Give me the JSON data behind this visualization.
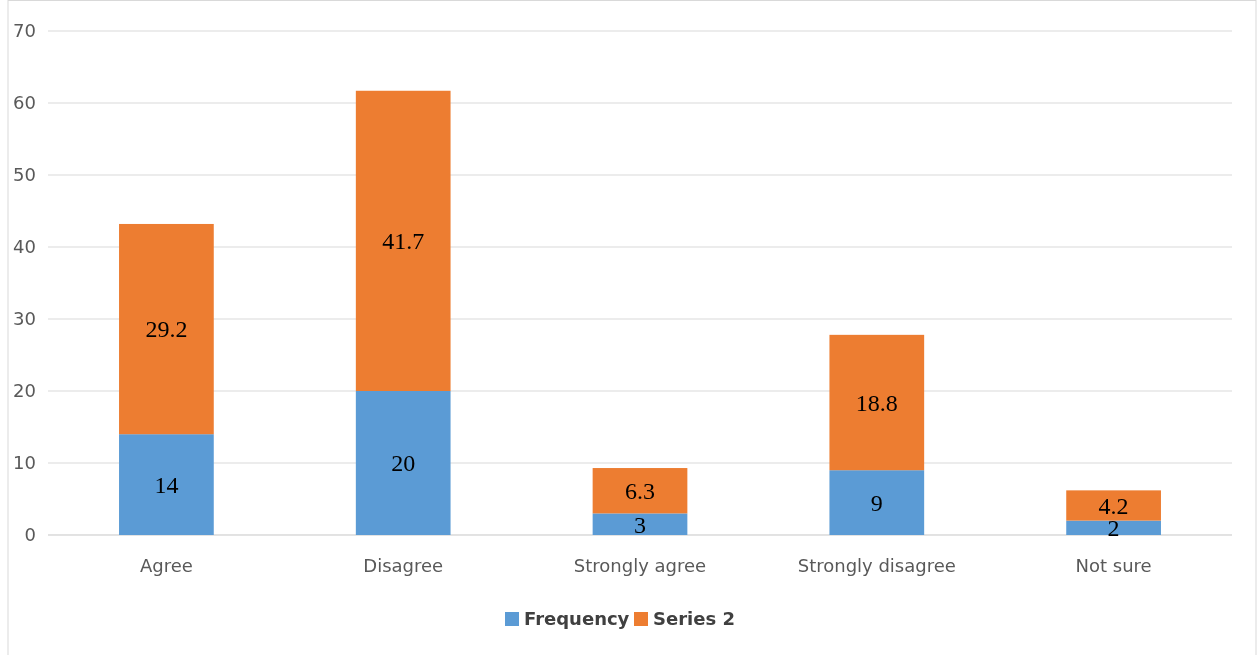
{
  "chart_data": {
    "type": "bar",
    "stacked": true,
    "categories": [
      "Agree",
      "Disagree",
      "Strongly agree",
      "Strongly disagree",
      "Not sure"
    ],
    "series": [
      {
        "name": "Frequency",
        "color": "#5b9bd5",
        "values": [
          14,
          20,
          3,
          9,
          2
        ]
      },
      {
        "name": "Series 2",
        "color": "#ed7d31",
        "values": [
          29.2,
          41.7,
          6.3,
          18.8,
          4.2
        ]
      }
    ],
    "ylim": [
      0,
      70
    ],
    "yticks": [
      0,
      10,
      20,
      30,
      40,
      50,
      60,
      70
    ],
    "grid": "y",
    "legend": "bottom",
    "data_labels": true
  }
}
